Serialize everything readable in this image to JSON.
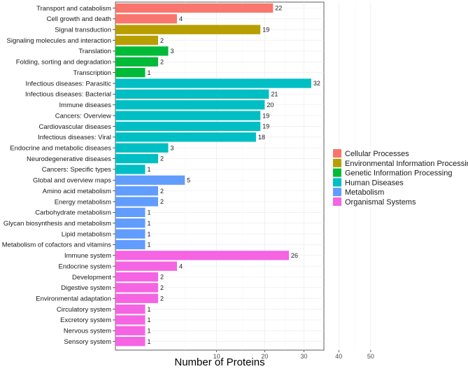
{
  "chart_data": {
    "type": "bar",
    "orientation": "horizontal",
    "title": "",
    "xlabel": "Number of Proteins",
    "ylabel": "",
    "x_ticks": [
      10,
      20,
      30,
      40,
      50
    ],
    "xlim": [
      0,
      50
    ],
    "grid": true,
    "legend_position": "right",
    "groups": [
      {
        "name": "Cellular Processes",
        "color": "#F8766D"
      },
      {
        "name": "Environmental Information Processing",
        "color": "#B79F00"
      },
      {
        "name": "Genetic Information Processing",
        "color": "#00BA38"
      },
      {
        "name": "Human Diseases",
        "color": "#00BFC4"
      },
      {
        "name": "Metabolism",
        "color": "#619CFF"
      },
      {
        "name": "Organismal Systems",
        "color": "#F564E3"
      }
    ],
    "bars": [
      {
        "label": "Transport and catabolism",
        "value": 22,
        "group": "Cellular Processes"
      },
      {
        "label": "Cell growth and death",
        "value": 4,
        "group": "Cellular Processes"
      },
      {
        "label": "Signal transduction",
        "value": 19,
        "group": "Environmental Information Processing"
      },
      {
        "label": "Signaling molecules and interaction",
        "value": 2,
        "group": "Environmental Information Processing"
      },
      {
        "label": "Translation",
        "value": 3,
        "group": "Genetic Information Processing"
      },
      {
        "label": "Folding, sorting and degradation",
        "value": 2,
        "group": "Genetic Information Processing"
      },
      {
        "label": "Transcription",
        "value": 1,
        "group": "Genetic Information Processing"
      },
      {
        "label": "Infectious diseases: Parasitic",
        "value": 32,
        "group": "Human Diseases"
      },
      {
        "label": "Infectious diseases: Bacterial",
        "value": 21,
        "group": "Human Diseases"
      },
      {
        "label": "Immune diseases",
        "value": 20,
        "group": "Human Diseases"
      },
      {
        "label": "Cancers: Overview",
        "value": 19,
        "group": "Human Diseases"
      },
      {
        "label": "Cardiovascular diseases",
        "value": 19,
        "group": "Human Diseases"
      },
      {
        "label": "Infectious diseases: Viral",
        "value": 18,
        "group": "Human Diseases"
      },
      {
        "label": "Endocrine and metabolic diseases",
        "value": 3,
        "group": "Human Diseases"
      },
      {
        "label": "Neurodegenerative diseases",
        "value": 2,
        "group": "Human Diseases"
      },
      {
        "label": "Cancers: Specific types",
        "value": 1,
        "group": "Human Diseases"
      },
      {
        "label": "Global and overview maps",
        "value": 5,
        "group": "Metabolism"
      },
      {
        "label": "Amino acid metabolism",
        "value": 2,
        "group": "Metabolism"
      },
      {
        "label": "Energy metabolism",
        "value": 2,
        "group": "Metabolism"
      },
      {
        "label": "Carbohydrate metabolism",
        "value": 1,
        "group": "Metabolism"
      },
      {
        "label": "Glycan biosynthesis and metabolism",
        "value": 1,
        "group": "Metabolism"
      },
      {
        "label": "Lipid metabolism",
        "value": 1,
        "group": "Metabolism"
      },
      {
        "label": "Metabolism of cofactors and vitamins",
        "value": 1,
        "group": "Metabolism"
      },
      {
        "label": "Immune system",
        "value": 26,
        "group": "Organismal Systems"
      },
      {
        "label": "Endocrine system",
        "value": 4,
        "group": "Organismal Systems"
      },
      {
        "label": "Development",
        "value": 2,
        "group": "Organismal Systems"
      },
      {
        "label": "Digestive system",
        "value": 2,
        "group": "Organismal Systems"
      },
      {
        "label": "Environmental adaptation",
        "value": 2,
        "group": "Organismal Systems"
      },
      {
        "label": "Circulatory system",
        "value": 1,
        "group": "Organismal Systems"
      },
      {
        "label": "Excretory system",
        "value": 1,
        "group": "Organismal Systems"
      },
      {
        "label": "Nervous system",
        "value": 1,
        "group": "Organismal Systems"
      },
      {
        "label": "Sensory system",
        "value": 1,
        "group": "Organismal Systems"
      }
    ]
  }
}
